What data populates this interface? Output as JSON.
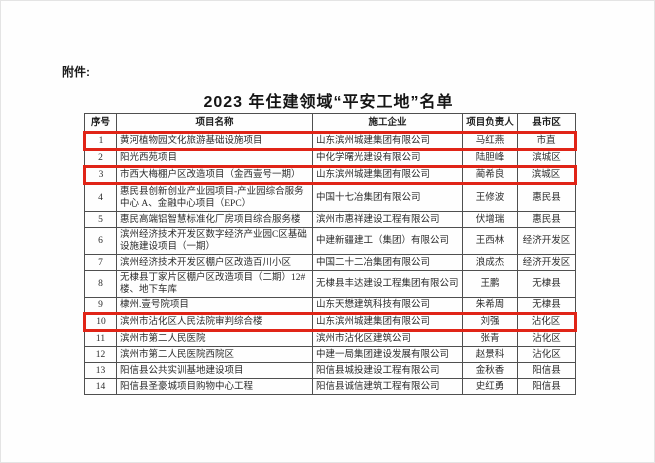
{
  "page": {
    "attachment_label": "附件:",
    "title": "2023 年住建领域“平安工地”名单"
  },
  "table": {
    "highlight_color": "#e02417",
    "headers": [
      "序号",
      "项目名称",
      "施工企业",
      "项目负责人",
      "县市区"
    ],
    "rows": [
      {
        "no": "1",
        "project": "黄河植物园文化旅游基础设施项目",
        "company": "山东滨州城建集团有限公司",
        "manager": "马红燕",
        "district": "市直",
        "highlighted": true
      },
      {
        "no": "2",
        "project": "阳光西苑项目",
        "company": "中化学曙光建设有限公司",
        "manager": "陆胆峰",
        "district": "滨城区",
        "highlighted": false
      },
      {
        "no": "3",
        "project": "市西大梅棚户区改造项目（金西壹号一期）",
        "company": "山东滨州城建集团有限公司",
        "manager": "蔺希良",
        "district": "滨城区",
        "highlighted": true
      },
      {
        "no": "4",
        "project": "惠民县创新创业产业园项目-产业园综合服务中心 A、金融中心项目（EPC）",
        "company": "中国十七冶集团有限公司",
        "manager": "王修波",
        "district": "惠民县",
        "highlighted": false
      },
      {
        "no": "5",
        "project": "惠民高端铝智慧标准化厂房项目综合服务楼",
        "company": "滨州市惠祥建设工程有限公司",
        "manager": "伏增瑞",
        "district": "惠民县",
        "highlighted": false
      },
      {
        "no": "6",
        "project": "滨州经济技术开发区数字经济产业园C区基础设施建设项目（一期）",
        "company": "中建新疆建工（集团）有限公司",
        "manager": "王西林",
        "district": "经济开发区",
        "highlighted": false
      },
      {
        "no": "7",
        "project": "滨州经济技术开发区棚户区改造百川小区",
        "company": "中国二十二冶集团有限公司",
        "manager": "浪成杰",
        "district": "经济开发区",
        "highlighted": false
      },
      {
        "no": "8",
        "project": "无棣县丁家片区棚户区改造项目（二期）12#楼、地下车库",
        "company": "无棣县丰达建设工程集团有限公司",
        "manager": "王鹏",
        "district": "无棣县",
        "highlighted": false
      },
      {
        "no": "9",
        "project": "棣州.壹号院项目",
        "company": "山东天懋建筑科技有限公司",
        "manager": "朱希周",
        "district": "无棣县",
        "highlighted": false
      },
      {
        "no": "10",
        "project": "滨州市沾化区人民法院审判综合楼",
        "company": "山东滨州城建集团有限公司",
        "manager": "刘强",
        "district": "沾化区",
        "highlighted": true
      },
      {
        "no": "11",
        "project": "滨州市第二人民医院",
        "company": "滨州市沾化区建筑公司",
        "manager": "张青",
        "district": "沾化区",
        "highlighted": false
      },
      {
        "no": "12",
        "project": "滨州市第二人民医院西院区",
        "company": "中建一局集团建设发展有限公司",
        "manager": "赵景科",
        "district": "沾化区",
        "highlighted": false
      },
      {
        "no": "13",
        "project": "阳信县公共实训基地建设项目",
        "company": "阳信县城投建设工程有限公司",
        "manager": "金秋香",
        "district": "阳信县",
        "highlighted": false
      },
      {
        "no": "14",
        "project": "阳信县圣豪城项目购物中心工程",
        "company": "阳信县诚信建筑工程有限公司",
        "manager": "史红勇",
        "district": "阳信县",
        "highlighted": false
      }
    ]
  }
}
